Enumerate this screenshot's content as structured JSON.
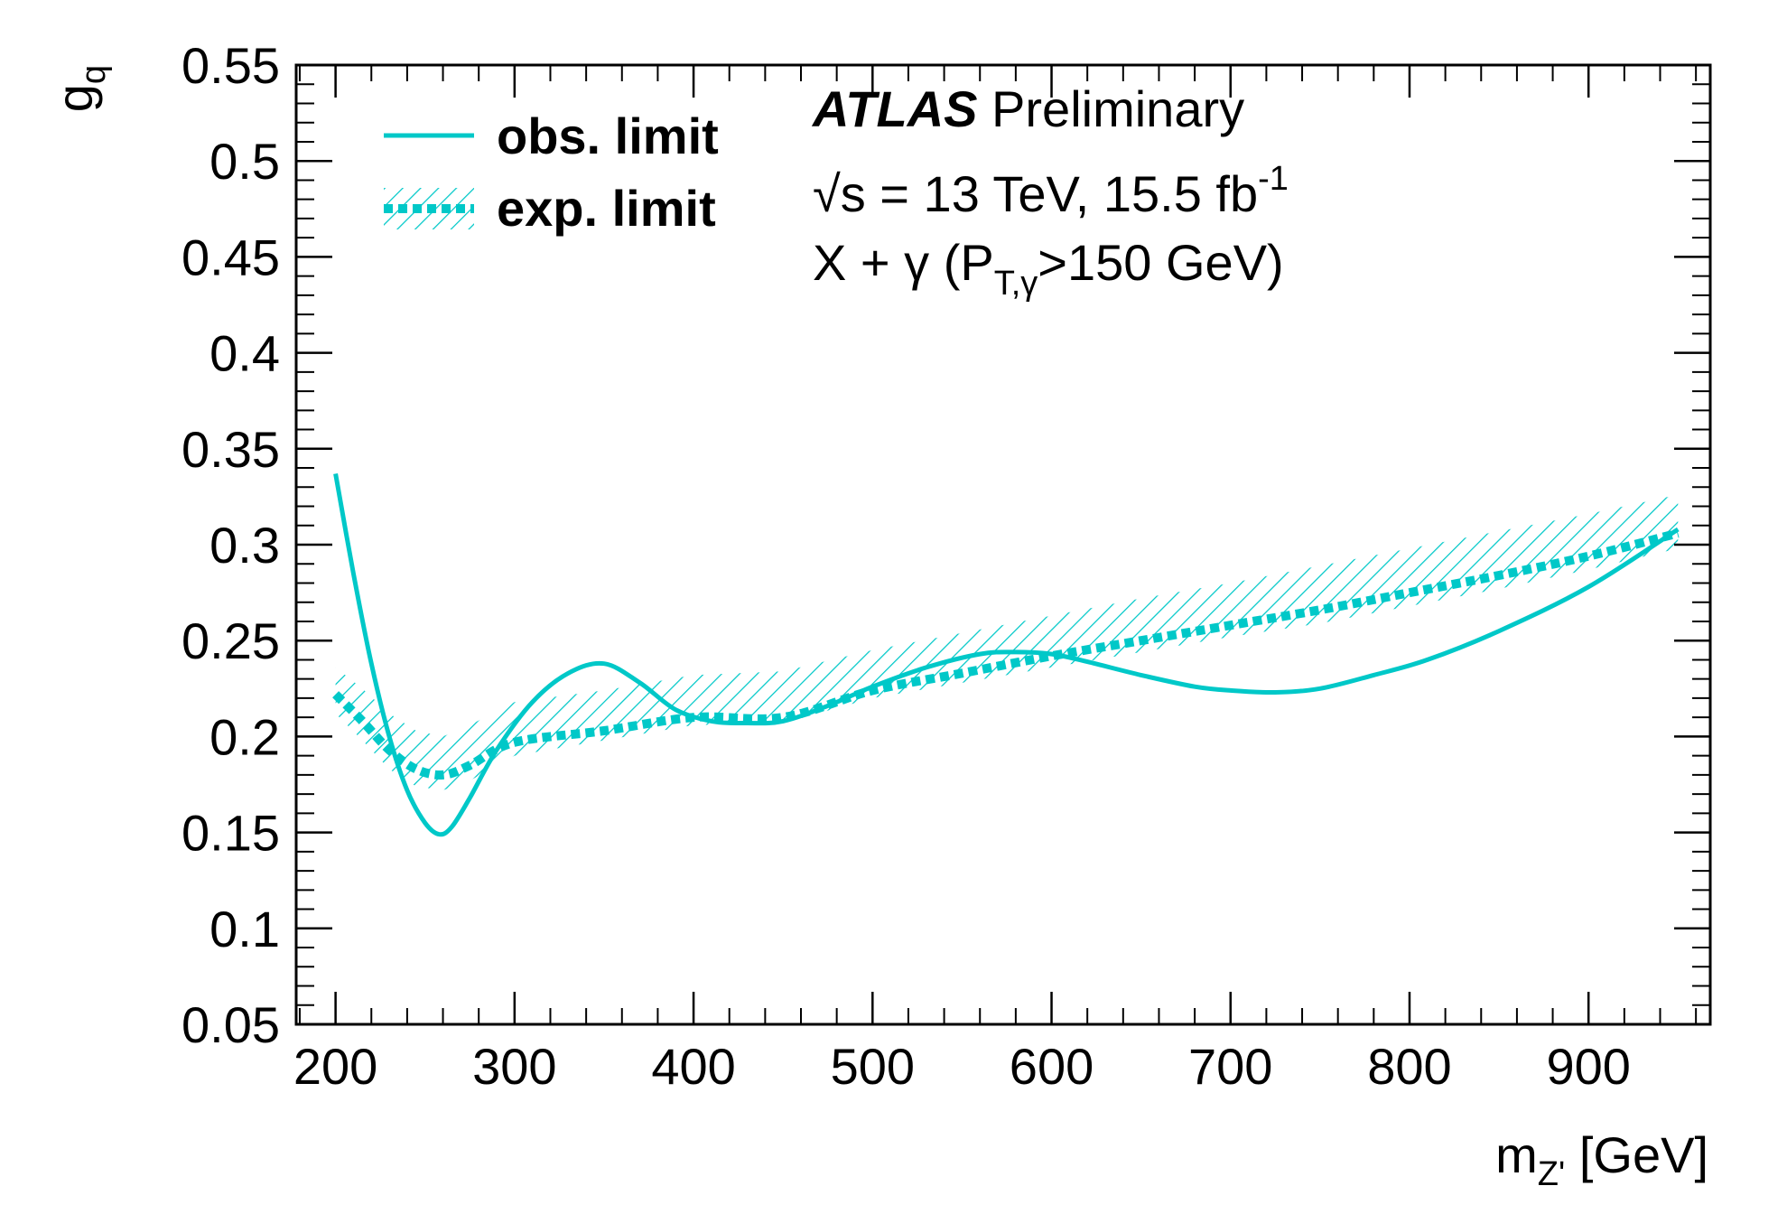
{
  "chart_data": {
    "type": "line",
    "title": "",
    "xlabel": {
      "base": "m",
      "sub": "Z'",
      "unit": " [GeV]"
    },
    "ylabel": {
      "base": "g",
      "sub": "q"
    },
    "xlim": [
      178,
      968
    ],
    "ylim": [
      0.05,
      0.55
    ],
    "x_ticks": [
      200,
      300,
      400,
      500,
      600,
      700,
      800,
      900
    ],
    "x_tick_labels": [
      "200",
      "300",
      "400",
      "500",
      "600",
      "700",
      "800",
      "900"
    ],
    "y_ticks": [
      0.05,
      0.1,
      0.15,
      0.2,
      0.25,
      0.3,
      0.35,
      0.4,
      0.45,
      0.5,
      0.55
    ],
    "y_tick_labels": [
      "0.05",
      "0.1",
      "0.15",
      "0.2",
      "0.25",
      "0.3",
      "0.35",
      "0.4",
      "0.45",
      "0.5",
      "0.55"
    ],
    "grid": false,
    "legend_position": "top-left",
    "color": "#00c8c8",
    "series": [
      {
        "name": "obs. limit",
        "style": "solid",
        "x": [
          200,
          210,
          220,
          230,
          240,
          250,
          258,
          265,
          275,
          290,
          310,
          330,
          350,
          370,
          390,
          410,
          430,
          450,
          475,
          500,
          530,
          560,
          580,
          600,
          620,
          650,
          680,
          700,
          725,
          750,
          780,
          810,
          850,
          900,
          950
        ],
        "y": [
          0.337,
          0.285,
          0.238,
          0.2,
          0.172,
          0.155,
          0.149,
          0.153,
          0.168,
          0.193,
          0.218,
          0.233,
          0.238,
          0.228,
          0.214,
          0.208,
          0.207,
          0.208,
          0.216,
          0.226,
          0.236,
          0.243,
          0.244,
          0.243,
          0.239,
          0.232,
          0.226,
          0.224,
          0.223,
          0.225,
          0.232,
          0.24,
          0.255,
          0.278,
          0.308
        ]
      },
      {
        "name": "exp. limit",
        "style": "dashed-band",
        "x": [
          200,
          215,
          230,
          245,
          260,
          275,
          300,
          350,
          400,
          450,
          500,
          550,
          600,
          650,
          700,
          750,
          800,
          850,
          900,
          950
        ],
        "y": [
          0.222,
          0.208,
          0.193,
          0.183,
          0.18,
          0.185,
          0.197,
          0.203,
          0.21,
          0.21,
          0.224,
          0.233,
          0.242,
          0.25,
          0.258,
          0.266,
          0.275,
          0.284,
          0.294,
          0.306
        ],
        "band_upper": [
          0.236,
          0.225,
          0.212,
          0.203,
          0.2,
          0.206,
          0.218,
          0.224,
          0.232,
          0.234,
          0.245,
          0.254,
          0.263,
          0.272,
          0.28,
          0.289,
          0.298,
          0.307,
          0.316,
          0.326
        ],
        "band_lower": [
          0.212,
          0.198,
          0.183,
          0.174,
          0.172,
          0.177,
          0.19,
          0.198,
          0.206,
          0.207,
          0.22,
          0.228,
          0.236,
          0.244,
          0.252,
          0.259,
          0.268,
          0.277,
          0.287,
          0.298
        ]
      }
    ],
    "annotations": {
      "experiment": "ATLAS",
      "status": " Preliminary",
      "sqrt_symbol": "√",
      "energy_line": "s = 13 TeV, 15.5 fb",
      "energy_sup": "-1",
      "selection_prefix": "X + γ (P",
      "selection_sub": "T,γ",
      "selection_suffix": ">150 GeV)"
    }
  }
}
